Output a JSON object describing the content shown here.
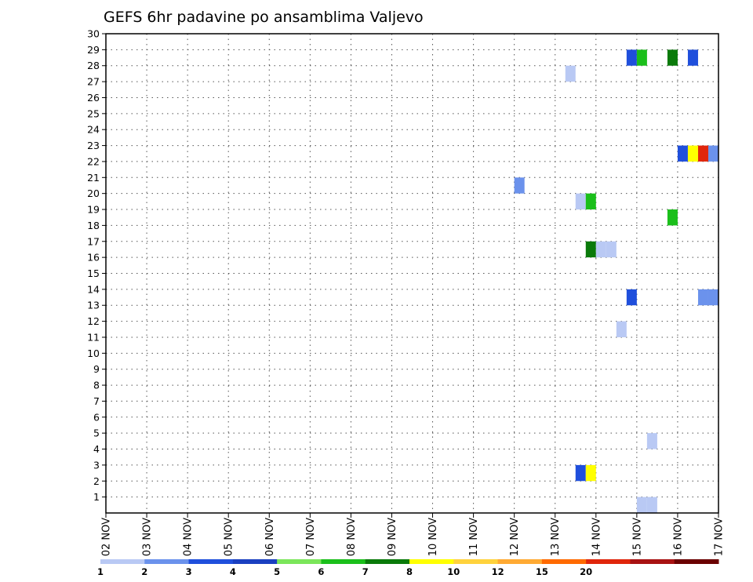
{
  "chart_data": {
    "type": "heatmap",
    "title": "GEFS 6hr padavine po ansamblima Valjevo",
    "xlabel": "",
    "ylabel": "",
    "x_tick_labels": [
      "02 NOV",
      "03 NOV",
      "04 NOV",
      "05 NOV",
      "06 NOV",
      "07 NOV",
      "08 NOV",
      "09 NOV",
      "10 NOV",
      "11 NOV",
      "12 NOV",
      "13 NOV",
      "14 NOV",
      "15 NOV",
      "16 NOV",
      "17 NOV"
    ],
    "x_range_days": [
      0,
      15
    ],
    "y_tick_labels": [
      "1",
      "2",
      "3",
      "4",
      "5",
      "6",
      "7",
      "8",
      "9",
      "10",
      "11",
      "12",
      "13",
      "14",
      "15",
      "16",
      "17",
      "18",
      "19",
      "20",
      "21",
      "22",
      "23",
      "24",
      "25",
      "26",
      "27",
      "28",
      "29",
      "30"
    ],
    "y_range": [
      0,
      30
    ],
    "grid": true,
    "colorbar": {
      "labels": [
        "1",
        "2",
        "3",
        "4",
        "5",
        "6",
        "7",
        "8",
        "10",
        "12",
        "15",
        "20"
      ],
      "colors": [
        "#b9c9f4",
        "#6b92ec",
        "#1f4fdc",
        "#1a3fc0",
        "#7be65a",
        "#1bbf1b",
        "#0a7a0a",
        "#ffff00",
        "#ffd23c",
        "#ffaa33",
        "#ff6a00",
        "#e0260b",
        "#a81212",
        "#6b0000"
      ]
    },
    "cells": [
      {
        "member": 28,
        "day": 12.75,
        "value": 3
      },
      {
        "member": 28,
        "day": 13.0,
        "value": 6
      },
      {
        "member": 28,
        "day": 13.75,
        "value": 7
      },
      {
        "member": 28,
        "day": 14.25,
        "value": 3
      },
      {
        "member": 27,
        "day": 11.25,
        "value": 1
      },
      {
        "member": 22,
        "day": 14.0,
        "value": 3
      },
      {
        "member": 22,
        "day": 14.25,
        "value": 8
      },
      {
        "member": 22,
        "day": 14.5,
        "value": 15
      },
      {
        "member": 22,
        "day": 14.75,
        "value": 2
      },
      {
        "member": 20,
        "day": 10.0,
        "value": 2
      },
      {
        "member": 19,
        "day": 11.5,
        "value": 1
      },
      {
        "member": 19,
        "day": 11.75,
        "value": 6
      },
      {
        "member": 18,
        "day": 13.75,
        "value": 6
      },
      {
        "member": 16,
        "day": 11.75,
        "value": 7
      },
      {
        "member": 16,
        "day": 12.0,
        "value": 1
      },
      {
        "member": 16,
        "day": 12.25,
        "value": 1
      },
      {
        "member": 13,
        "day": 12.75,
        "value": 3
      },
      {
        "member": 13,
        "day": 14.5,
        "value": 2
      },
      {
        "member": 13,
        "day": 14.75,
        "value": 2
      },
      {
        "member": 11,
        "day": 12.5,
        "value": 1
      },
      {
        "member": 4,
        "day": 13.25,
        "value": 1
      },
      {
        "member": 2,
        "day": 11.5,
        "value": 3
      },
      {
        "member": 2,
        "day": 11.75,
        "value": 8
      },
      {
        "member": 0,
        "day": 13.0,
        "value": 1
      },
      {
        "member": 0,
        "day": 13.25,
        "value": 1
      }
    ]
  }
}
